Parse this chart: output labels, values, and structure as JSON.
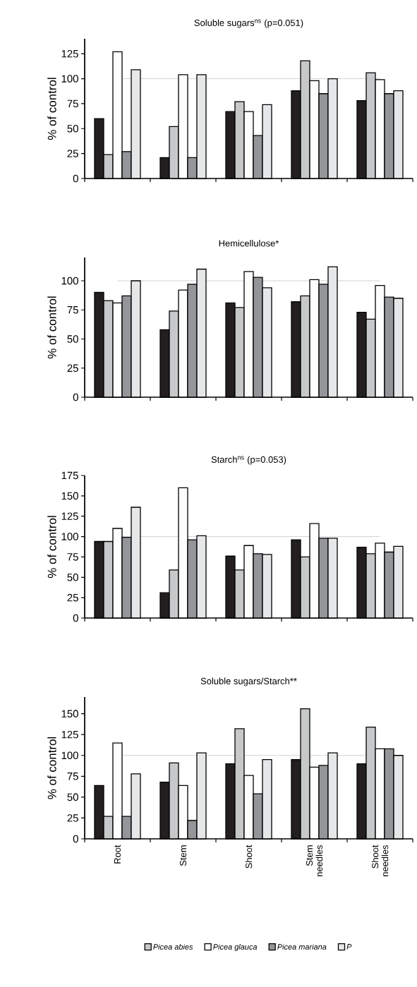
{
  "chart_data": [
    {
      "type": "bar",
      "title": "Soluble sugars$^{ns}$ (p=0.051)",
      "ylabel": "% of control",
      "categories": [
        null,
        null,
        null,
        null,
        null
      ],
      "tick_labels": "y",
      "series": [
        {
          "color": "#231f20",
          "values": [
            60,
            21,
            67,
            88,
            78
          ]
        },
        {
          "color": "#c6c8ca",
          "values": [
            24,
            52,
            77,
            118,
            106
          ]
        },
        {
          "color": "#fdfdfd",
          "values": [
            127,
            104,
            67,
            98,
            99
          ]
        },
        {
          "color": "#939598",
          "values": [
            27,
            21,
            43,
            85,
            85
          ]
        },
        {
          "color": "#e6e7e8",
          "values": [
            109,
            104,
            74,
            100,
            88
          ]
        }
      ],
      "ylim": [
        0,
        140
      ],
      "yticks": [
        0,
        25,
        50,
        75,
        100,
        125
      ],
      "ref_lines": [
        {
          "axis": "y",
          "value": 100,
          "color": "#c8c8c8"
        }
      ]
    },
    {
      "type": "bar",
      "title": "Hemicellulose*",
      "ylabel": "% of control",
      "categories": [
        null,
        null,
        null,
        null,
        null
      ],
      "tick_labels": "y",
      "series": [
        {
          "color": "#231f20",
          "values": [
            90,
            58,
            81,
            82,
            73
          ]
        },
        {
          "color": "#c6c8ca",
          "values": [
            83,
            74,
            77,
            87,
            67
          ]
        },
        {
          "color": "#fdfdfd",
          "values": [
            81,
            92,
            108,
            101,
            96
          ]
        },
        {
          "color": "#939598",
          "values": [
            87,
            97,
            103,
            97,
            86
          ]
        },
        {
          "color": "#e6e7e8",
          "values": [
            100,
            110,
            94,
            112,
            85
          ]
        }
      ],
      "ylim": [
        0,
        120
      ],
      "yticks": [
        0,
        25,
        50,
        75,
        100
      ],
      "ref_lines": [
        {
          "axis": "y",
          "value": 100,
          "color": "#c8c8c8"
        }
      ]
    },
    {
      "type": "bar",
      "title": "Starch$^{ns}$ (p=0.053)",
      "ylabel": "% of control",
      "categories": [
        null,
        null,
        null,
        null,
        null
      ],
      "tick_labels": "y",
      "series": [
        {
          "color": "#231f20",
          "values": [
            94,
            31,
            76,
            96,
            87
          ]
        },
        {
          "color": "#c6c8ca",
          "values": [
            94,
            59,
            59,
            75,
            79
          ]
        },
        {
          "color": "#fdfdfd",
          "values": [
            110,
            160,
            89,
            116,
            92
          ]
        },
        {
          "color": "#939598",
          "values": [
            99,
            96,
            79,
            98,
            81
          ]
        },
        {
          "color": "#e6e7e8",
          "values": [
            136,
            101,
            78,
            98,
            88
          ]
        }
      ],
      "ylim": [
        0,
        175
      ],
      "yticks": [
        0,
        25,
        50,
        75,
        100,
        125,
        150,
        175
      ],
      "ref_lines": [
        {
          "axis": "y",
          "value": 100,
          "color": "#c8c8c8"
        }
      ]
    },
    {
      "type": "bar",
      "title": "Soluble sugars/Starch**",
      "ylabel": "% of control",
      "categories": [
        "Root",
        "Stem",
        "Shoot",
        "Stem needles",
        "Shoot needles"
      ],
      "legend": "bottom",
      "series": [
        {
          "color": "#231f20",
          "values": [
            64,
            68,
            90,
            95,
            90
          ]
        },
        {
          "name": "Picea abies",
          "color": "#c6c8ca",
          "values": [
            27,
            91,
            132,
            156,
            134
          ]
        },
        {
          "name": "Picea glauca",
          "color": "#fdfdfd",
          "values": [
            115,
            64,
            76,
            86,
            108
          ]
        },
        {
          "name": "Picea mariana",
          "color": "#939598",
          "values": [
            27,
            22,
            54,
            88,
            108
          ]
        },
        {
          "name": "P",
          "color": "#e6e7e8",
          "values": [
            78,
            103,
            95,
            103,
            100
          ]
        }
      ],
      "ylim": [
        0,
        170
      ],
      "yticks": [
        0,
        25,
        50,
        75,
        100,
        125,
        150
      ],
      "ref_lines": [
        {
          "axis": "y",
          "value": 100,
          "color": "#c8c8c8"
        }
      ]
    }
  ]
}
